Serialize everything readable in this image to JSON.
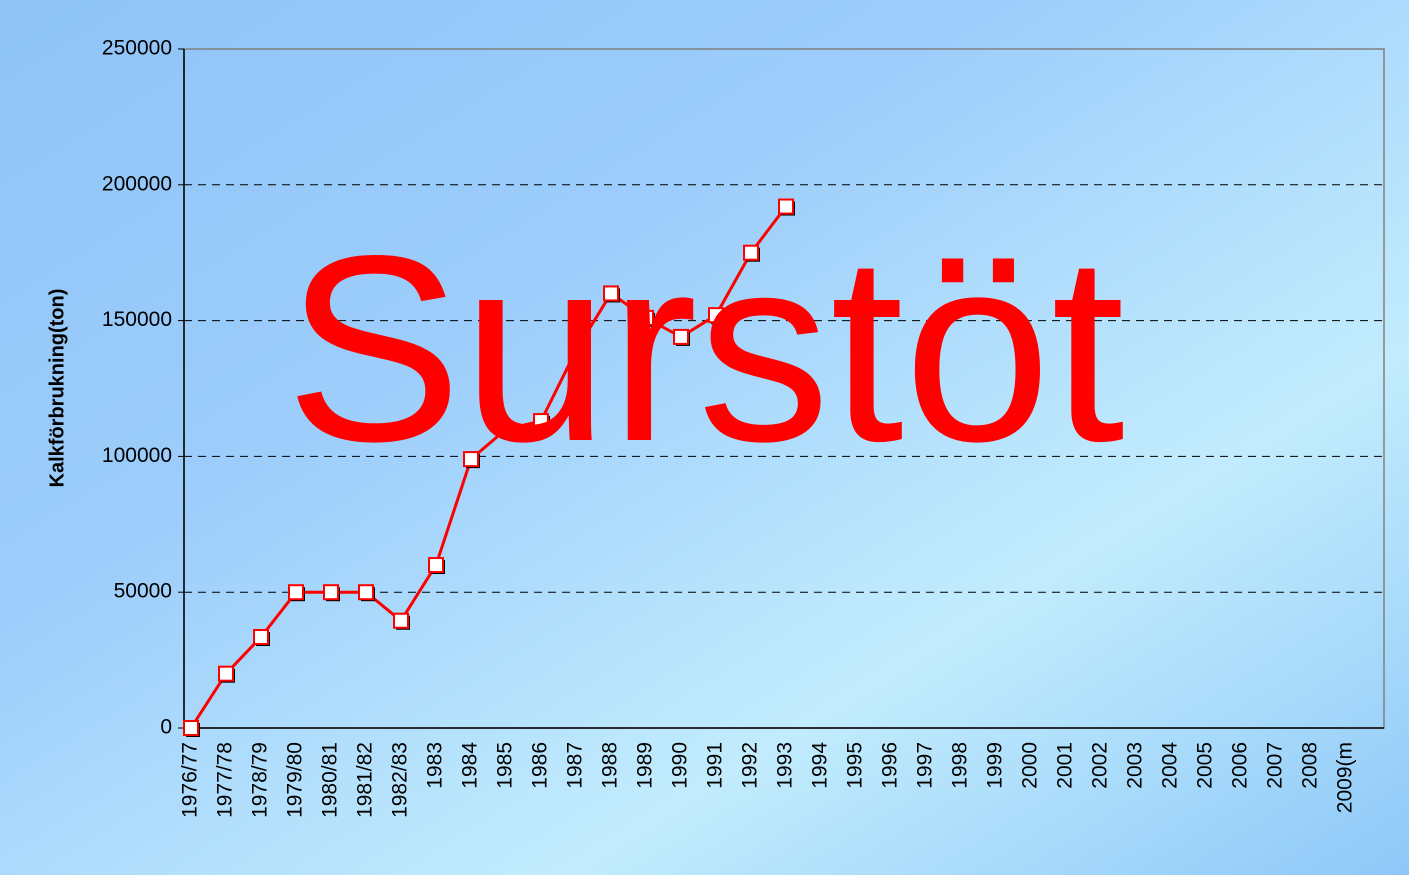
{
  "chart_data": {
    "type": "line",
    "y_label": "Kalkförbrukning(ton)",
    "annotation": "Surstöt",
    "categories": [
      "1976/77",
      "1977/78",
      "1978/79",
      "1979/80",
      "1980/81",
      "1981/82",
      "1982/83",
      "1983",
      "1984",
      "1985",
      "1986",
      "1987",
      "1988",
      "1989",
      "1990",
      "1991",
      "1992",
      "1993",
      "1994",
      "1995",
      "1996",
      "1997",
      "1998",
      "1999",
      "2000",
      "2001",
      "2002",
      "2003",
      "2004",
      "2005",
      "2006",
      "2007",
      "2008",
      "2009(m"
    ],
    "series": [
      {
        "color": "#ff0000",
        "values": [
          0,
          20000,
          33500,
          50000,
          50000,
          50000,
          39500,
          60000,
          99000,
          110000,
          113000,
          139000,
          160000,
          151000,
          144000,
          152000,
          175000,
          192000,
          null,
          null,
          null,
          null,
          null,
          null,
          null,
          null,
          null,
          null,
          null,
          null,
          null,
          null,
          null,
          null
        ]
      }
    ],
    "ylim": [
      0,
      250000
    ],
    "yticks": [
      0,
      50000,
      100000,
      150000,
      200000,
      250000
    ],
    "grid": true
  }
}
